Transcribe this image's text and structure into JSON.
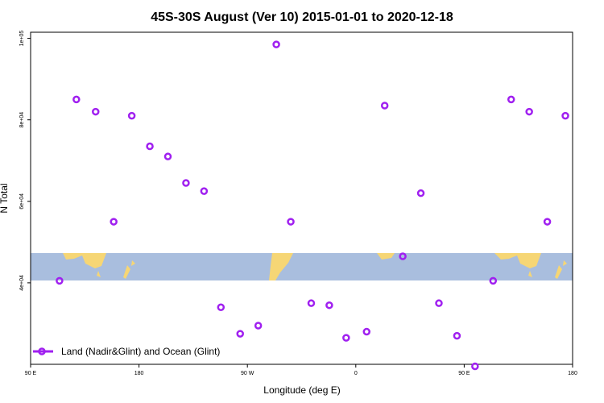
{
  "chart_data": {
    "type": "scatter",
    "title": "45S-30S August (Ver 10)   2015-01-01 to 2020-12-18",
    "xlabel": "Longitude (deg E)",
    "ylabel": "N Total",
    "x_ticks": [
      {
        "value": 90,
        "label": "90 E"
      },
      {
        "value": 180,
        "label": "180"
      },
      {
        "value": 270,
        "label": "90 W"
      },
      {
        "value": 360,
        "label": "0"
      },
      {
        "value": 450,
        "label": "90 E"
      },
      {
        "value": 540,
        "label": "180"
      }
    ],
    "y_ticks": [
      {
        "value": 40000,
        "label": "4e+04"
      },
      {
        "value": 60000,
        "label": "6e+04"
      },
      {
        "value": 80000,
        "label": "8e+04"
      },
      {
        "value": 100000,
        "label": "1e+05"
      }
    ],
    "xlim": [
      90,
      540
    ],
    "ylim": [
      20000,
      101500
    ],
    "grid": false,
    "legend_position": "bottom-left",
    "background_band": {
      "description_colors": {
        "ocean": "#a9bede",
        "land": "#f6d675"
      }
    },
    "series": [
      {
        "name": "Land (Nadir&Glint) and Ocean (Glint)",
        "color": "#a020f0",
        "marker": "open-circle",
        "points": [
          {
            "x": 114,
            "y": 40500
          },
          {
            "x": 128,
            "y": 85000
          },
          {
            "x": 144,
            "y": 82000
          },
          {
            "x": 159,
            "y": 55000
          },
          {
            "x": 174,
            "y": 81000
          },
          {
            "x": 189,
            "y": 73500
          },
          {
            "x": 204,
            "y": 71000
          },
          {
            "x": 219,
            "y": 64500
          },
          {
            "x": 234,
            "y": 62500
          },
          {
            "x": 248,
            "y": 34000
          },
          {
            "x": 264,
            "y": 27500
          },
          {
            "x": 279,
            "y": 29500
          },
          {
            "x": 294,
            "y": 98500
          },
          {
            "x": 306,
            "y": 55000
          },
          {
            "x": 323,
            "y": 35000
          },
          {
            "x": 338,
            "y": 34500
          },
          {
            "x": 352,
            "y": 26500
          },
          {
            "x": 369,
            "y": 28000
          },
          {
            "x": 384,
            "y": 83500
          },
          {
            "x": 399,
            "y": 46500
          },
          {
            "x": 414,
            "y": 62000
          },
          {
            "x": 429,
            "y": 35000
          },
          {
            "x": 444,
            "y": 27000
          },
          {
            "x": 459,
            "y": 19500
          },
          {
            "x": 474,
            "y": 40500
          },
          {
            "x": 489,
            "y": 85000
          },
          {
            "x": 504,
            "y": 82000
          },
          {
            "x": 519,
            "y": 55000
          },
          {
            "x": 534,
            "y": 81000
          }
        ]
      }
    ]
  }
}
